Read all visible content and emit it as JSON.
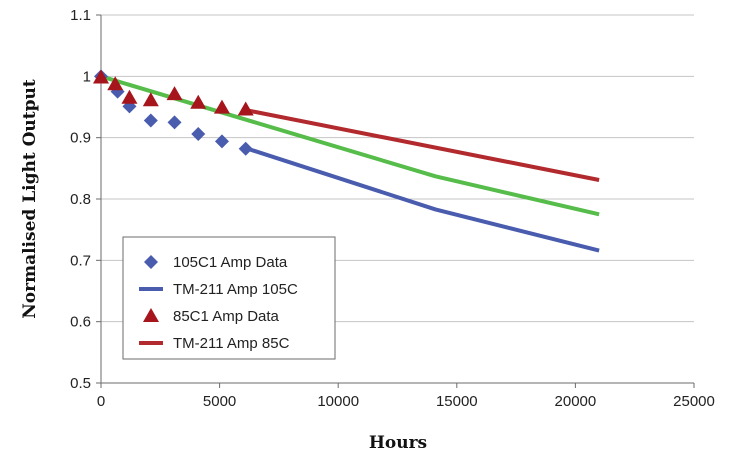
{
  "chart_data": {
    "type": "line",
    "title": "",
    "xlabel": "Hours",
    "ylabel": "Normalised Light Output",
    "xlim": [
      0,
      25000
    ],
    "ylim": [
      0.5,
      1.1
    ],
    "x_ticks": [
      0,
      5000,
      10000,
      15000,
      20000,
      25000
    ],
    "y_ticks": [
      0.5,
      0.6,
      0.7,
      0.8,
      0.9,
      1,
      1.1
    ],
    "grid": "horizontal",
    "legend_position": "bottom-left",
    "series": [
      {
        "name": "105C1 Amp Data",
        "kind": "scatter",
        "marker": "diamond",
        "color": "#4a5cae",
        "points": [
          [
            0,
            1.0
          ],
          [
            700,
            0.975
          ],
          [
            1200,
            0.951
          ],
          [
            2100,
            0.928
          ],
          [
            3100,
            0.925
          ],
          [
            4100,
            0.906
          ],
          [
            5100,
            0.894
          ],
          [
            6100,
            0.882
          ]
        ]
      },
      {
        "name": "TM-211 Amp 105C",
        "kind": "line",
        "color": "#4a5cae",
        "points": [
          [
            6100,
            0.883
          ],
          [
            14100,
            0.783
          ],
          [
            21000,
            0.716
          ]
        ]
      },
      {
        "name": "85C1 Amp Data",
        "kind": "scatter",
        "marker": "triangle",
        "color": "#a6151c",
        "points": [
          [
            0,
            0.998
          ],
          [
            600,
            0.987
          ],
          [
            1200,
            0.965
          ],
          [
            2100,
            0.961
          ],
          [
            3100,
            0.971
          ],
          [
            4100,
            0.957
          ],
          [
            5100,
            0.949
          ],
          [
            6100,
            0.946
          ]
        ]
      },
      {
        "name": "TM-211 Amp 85C",
        "kind": "line",
        "color": "#b22a2e",
        "points": [
          [
            6100,
            0.945
          ],
          [
            21000,
            0.831
          ]
        ]
      },
      {
        "name": "",
        "kind": "line",
        "color": "#56bc4a",
        "points": [
          [
            0,
            1.0
          ],
          [
            14100,
            0.837
          ],
          [
            21000,
            0.775
          ]
        ]
      }
    ]
  }
}
